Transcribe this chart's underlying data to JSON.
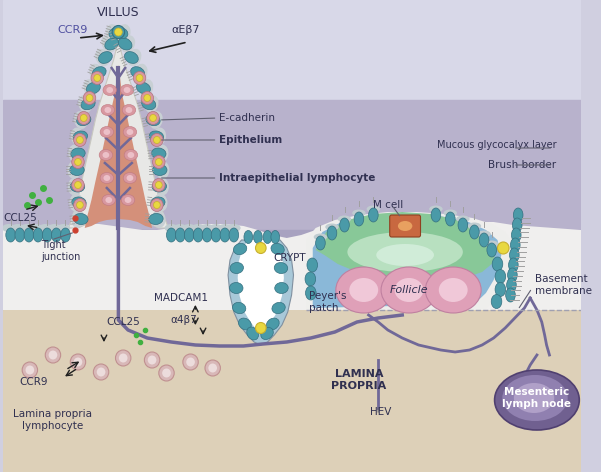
{
  "bg_colors": {
    "top_band": "#d0cfe0",
    "mid_band": "#b8b4cc",
    "lower_band": "#c8c0d8",
    "bottom": "#ddd0b8"
  },
  "colors": {
    "white_mucosa": "#f0efee",
    "villus_fill": "#d4907a",
    "villus_light": "#e0b0a0",
    "teal_cell": "#4a9aa8",
    "teal_dark": "#357080",
    "gray_halo": "#c0ccd0",
    "yellow_cell": "#e8d840",
    "pink_cell": "#d898a0",
    "pink_light": "#ecc0c8",
    "vessel_purple": "#706898",
    "crypt_wall": "#a0c0d0",
    "green_dot": "#40b040",
    "red_dot": "#cc4030",
    "pp_blue": "#8ab8d8",
    "pp_green": "#88c898",
    "pp_green_light": "#b8e0c0",
    "follicle_pink": "#dfa0b8",
    "follicle_light": "#f0c8d8",
    "m_cell_orange": "#c86840",
    "m_cell_light": "#e0a060",
    "lymph_node_dark": "#706090",
    "lymph_node_mid": "#9080b0",
    "lymph_node_light": "#b0a0c8",
    "brush_gray": "#a8a8a8",
    "lp_cell": "#d8b8b8",
    "lp_inner": "#ecdcd8"
  },
  "labels": {
    "VILLUS": "VILLUS",
    "CCR9_top": "CCR9",
    "aEb7": "αEβ7",
    "CCL25_left": "CCL25",
    "E_cadherin": "E-cadherin",
    "Epithelium": "Epithelium",
    "Intraepithelial": "Intraepithelial lymphocyte",
    "Tight_junction": "Tight\njunction",
    "CCL25_bottom": "CCL25",
    "CCR9_bottom": "CCR9",
    "MADCAM1": "MADCAM1",
    "a4b7": "α4β7",
    "CRYPT": "CRYPT",
    "Lamina_propria": "Lamina propria\nlymphocyte",
    "Peyers_patch": "Peyer's\npatch",
    "LAMINA_PROPRIA": "LAMINA\nPROPRIA",
    "HEV": "HEV",
    "M_cell": "M cell",
    "Mucous": "Mucous glycocalyx layer",
    "Brush_border": "Brush border",
    "Follicle": "Follicle",
    "Basement_membrane": "Basement\nmembrane",
    "Mesenteric": "Mesenteric\nlymph node"
  }
}
